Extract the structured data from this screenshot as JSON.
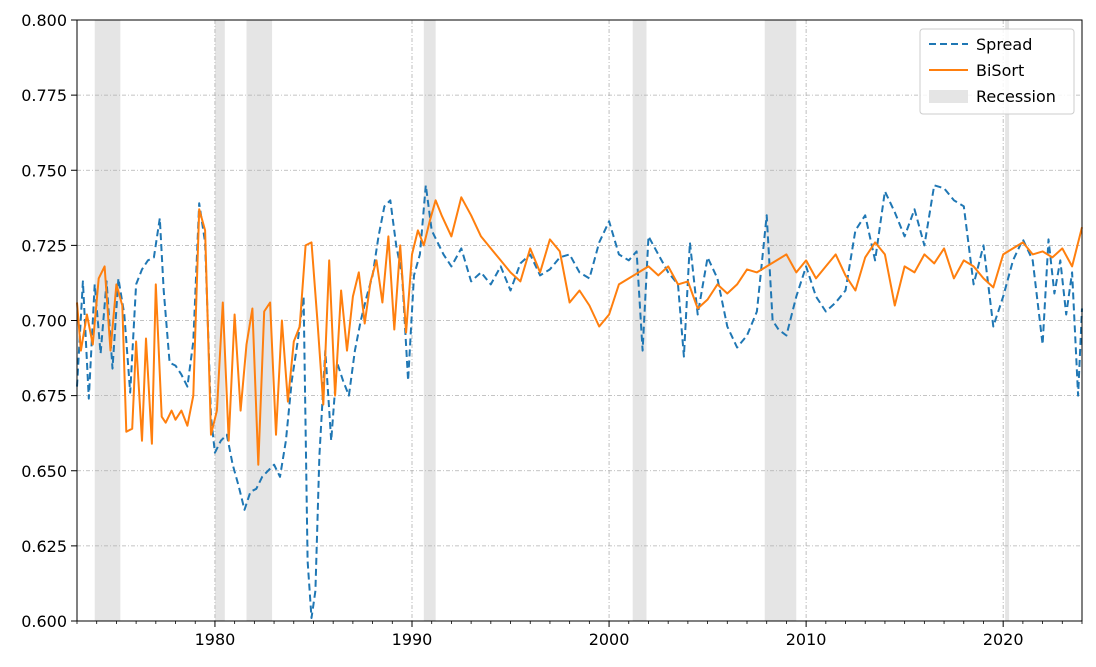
{
  "chart_data": {
    "type": "line",
    "title": "",
    "xlabel": "",
    "ylabel": "",
    "xlim": [
      1973.0,
      2024.0
    ],
    "ylim": [
      0.6,
      0.8
    ],
    "x_ticks": [
      1980,
      1990,
      2000,
      2010,
      2020
    ],
    "x_tick_labels": [
      "1980",
      "1990",
      "2000",
      "2010",
      "2020"
    ],
    "y_ticks": [
      0.6,
      0.625,
      0.65,
      0.675,
      0.7,
      0.725,
      0.75,
      0.775,
      0.8
    ],
    "y_tick_labels": [
      "0.600",
      "0.625",
      "0.650",
      "0.675",
      "0.700",
      "0.725",
      "0.750",
      "0.775",
      "0.800"
    ],
    "grid": true,
    "legend_position": "top-right",
    "legend": [
      "Spread",
      "BiSort",
      "Recession"
    ],
    "recessions": [
      [
        1973.9,
        1975.2
      ],
      [
        1980.0,
        1980.5
      ],
      [
        1981.6,
        1982.9
      ],
      [
        1990.6,
        1991.2
      ],
      [
        2001.2,
        2001.9
      ],
      [
        2007.9,
        2009.5
      ],
      [
        2020.1,
        2020.3
      ]
    ],
    "series": [
      {
        "name": "Spread",
        "style": "dashed",
        "color": "#1f77b4",
        "x": [
          1973.0,
          1973.3,
          1973.6,
          1973.9,
          1974.2,
          1974.5,
          1974.8,
          1975.1,
          1975.4,
          1975.7,
          1976.0,
          1976.3,
          1976.6,
          1976.9,
          1977.2,
          1977.4,
          1977.7,
          1978.0,
          1978.3,
          1978.6,
          1978.9,
          1979.2,
          1979.5,
          1979.8,
          1980.0,
          1980.3,
          1980.6,
          1980.9,
          1981.2,
          1981.5,
          1981.8,
          1982.1,
          1982.4,
          1982.7,
          1983.0,
          1983.3,
          1983.6,
          1983.9,
          1984.2,
          1984.5,
          1984.7,
          1984.9,
          1985.1,
          1985.3,
          1985.6,
          1985.9,
          1986.2,
          1986.5,
          1986.8,
          1987.1,
          1987.4,
          1987.7,
          1988.0,
          1988.3,
          1988.6,
          1988.9,
          1989.2,
          1989.5,
          1989.8,
          1990.1,
          1990.4,
          1990.7,
          1991.0,
          1991.3,
          1991.6,
          1992.0,
          1992.5,
          1993.0,
          1993.5,
          1994.0,
          1994.5,
          1995.0,
          1995.5,
          1996.0,
          1996.5,
          1997.0,
          1997.5,
          1998.0,
          1998.5,
          1999.0,
          1999.5,
          2000.0,
          2000.5,
          2001.0,
          2001.4,
          2001.7,
          2002.0,
          2002.5,
          2003.0,
          2003.5,
          2003.8,
          2004.1,
          2004.5,
          2005.0,
          2005.5,
          2006.0,
          2006.5,
          2007.0,
          2007.5,
          2008.0,
          2008.3,
          2008.6,
          2009.0,
          2009.5,
          2010.0,
          2010.5,
          2011.0,
          2011.5,
          2012.0,
          2012.5,
          2013.0,
          2013.5,
          2014.0,
          2014.5,
          2015.0,
          2015.5,
          2016.0,
          2016.5,
          2017.0,
          2017.5,
          2018.0,
          2018.5,
          2019.0,
          2019.5,
          2020.0,
          2020.5,
          2021.0,
          2021.5,
          2022.0,
          2022.3,
          2022.6,
          2022.9,
          2023.2,
          2023.5,
          2023.8,
          2024.0
        ],
        "values": [
          0.678,
          0.713,
          0.674,
          0.712,
          0.689,
          0.713,
          0.684,
          0.714,
          0.702,
          0.676,
          0.712,
          0.717,
          0.72,
          0.721,
          0.734,
          0.71,
          0.686,
          0.685,
          0.682,
          0.678,
          0.693,
          0.739,
          0.726,
          0.668,
          0.656,
          0.66,
          0.662,
          0.652,
          0.645,
          0.637,
          0.643,
          0.644,
          0.648,
          0.65,
          0.652,
          0.648,
          0.66,
          0.68,
          0.693,
          0.708,
          0.62,
          0.601,
          0.61,
          0.655,
          0.69,
          0.66,
          0.686,
          0.68,
          0.675,
          0.69,
          0.7,
          0.708,
          0.715,
          0.728,
          0.738,
          0.74,
          0.725,
          0.715,
          0.68,
          0.715,
          0.722,
          0.745,
          0.73,
          0.726,
          0.722,
          0.718,
          0.724,
          0.713,
          0.716,
          0.712,
          0.718,
          0.71,
          0.719,
          0.722,
          0.715,
          0.717,
          0.721,
          0.722,
          0.716,
          0.714,
          0.726,
          0.733,
          0.722,
          0.72,
          0.723,
          0.69,
          0.728,
          0.722,
          0.716,
          0.712,
          0.688,
          0.726,
          0.702,
          0.721,
          0.714,
          0.698,
          0.691,
          0.695,
          0.703,
          0.735,
          0.7,
          0.697,
          0.695,
          0.708,
          0.718,
          0.708,
          0.703,
          0.706,
          0.71,
          0.73,
          0.735,
          0.72,
          0.743,
          0.736,
          0.728,
          0.737,
          0.725,
          0.745,
          0.744,
          0.74,
          0.738,
          0.712,
          0.725,
          0.698,
          0.708,
          0.72,
          0.727,
          0.72,
          0.692,
          0.727,
          0.709,
          0.72,
          0.702,
          0.716,
          0.675,
          0.704
        ]
      },
      {
        "name": "BiSort",
        "style": "solid",
        "color": "#ff7f0e",
        "x": [
          1973.0,
          1973.2,
          1973.5,
          1973.8,
          1974.1,
          1974.4,
          1974.7,
          1975.0,
          1975.3,
          1975.5,
          1975.8,
          1976.0,
          1976.3,
          1976.5,
          1976.8,
          1977.0,
          1977.3,
          1977.5,
          1977.8,
          1978.0,
          1978.3,
          1978.6,
          1978.9,
          1979.2,
          1979.5,
          1979.8,
          1980.1,
          1980.4,
          1980.7,
          1981.0,
          1981.3,
          1981.6,
          1981.9,
          1982.2,
          1982.5,
          1982.8,
          1983.1,
          1983.4,
          1983.7,
          1984.0,
          1984.3,
          1984.6,
          1984.9,
          1985.2,
          1985.5,
          1985.8,
          1986.1,
          1986.4,
          1986.7,
          1987.0,
          1987.3,
          1987.6,
          1987.9,
          1988.2,
          1988.5,
          1988.8,
          1989.1,
          1989.4,
          1989.7,
          1990.0,
          1990.3,
          1990.6,
          1990.9,
          1991.2,
          1991.5,
          1992.0,
          1992.5,
          1993.0,
          1993.5,
          1994.0,
          1994.5,
          1995.0,
          1995.5,
          1996.0,
          1996.5,
          1997.0,
          1997.5,
          1998.0,
          1998.5,
          1999.0,
          1999.5,
          2000.0,
          2000.5,
          2001.0,
          2001.5,
          2002.0,
          2002.5,
          2003.0,
          2003.5,
          2004.0,
          2004.5,
          2005.0,
          2005.5,
          2006.0,
          2006.5,
          2007.0,
          2007.5,
          2008.0,
          2008.5,
          2009.0,
          2009.5,
          2010.0,
          2010.5,
          2011.0,
          2011.5,
          2012.0,
          2012.5,
          2013.0,
          2013.5,
          2014.0,
          2014.5,
          2015.0,
          2015.5,
          2016.0,
          2016.5,
          2017.0,
          2017.5,
          2018.0,
          2018.5,
          2019.0,
          2019.5,
          2020.0,
          2020.5,
          2021.0,
          2021.5,
          2022.0,
          2022.5,
          2023.0,
          2023.5,
          2024.0
        ],
        "values": [
          0.706,
          0.69,
          0.702,
          0.692,
          0.714,
          0.718,
          0.69,
          0.712,
          0.705,
          0.663,
          0.664,
          0.693,
          0.66,
          0.694,
          0.659,
          0.712,
          0.668,
          0.666,
          0.67,
          0.667,
          0.67,
          0.665,
          0.675,
          0.737,
          0.73,
          0.662,
          0.67,
          0.706,
          0.66,
          0.702,
          0.67,
          0.692,
          0.704,
          0.652,
          0.703,
          0.706,
          0.662,
          0.7,
          0.673,
          0.693,
          0.698,
          0.725,
          0.726,
          0.7,
          0.672,
          0.72,
          0.675,
          0.71,
          0.69,
          0.708,
          0.716,
          0.699,
          0.713,
          0.72,
          0.706,
          0.728,
          0.697,
          0.725,
          0.696,
          0.722,
          0.73,
          0.725,
          0.733,
          0.74,
          0.735,
          0.728,
          0.741,
          0.735,
          0.728,
          0.724,
          0.72,
          0.716,
          0.713,
          0.724,
          0.716,
          0.727,
          0.723,
          0.706,
          0.71,
          0.705,
          0.698,
          0.702,
          0.712,
          0.714,
          0.716,
          0.718,
          0.715,
          0.718,
          0.712,
          0.713,
          0.704,
          0.707,
          0.712,
          0.709,
          0.712,
          0.717,
          0.716,
          0.718,
          0.72,
          0.722,
          0.716,
          0.72,
          0.714,
          0.718,
          0.722,
          0.715,
          0.71,
          0.721,
          0.726,
          0.722,
          0.705,
          0.718,
          0.716,
          0.722,
          0.719,
          0.724,
          0.714,
          0.72,
          0.718,
          0.714,
          0.711,
          0.722,
          0.724,
          0.726,
          0.722,
          0.723,
          0.721,
          0.724,
          0.718,
          0.731
        ]
      }
    ]
  },
  "colors": {
    "spread": "#1f77b4",
    "bisort": "#ff7f0e",
    "recession": "#e5e5e5",
    "grid": "#b0b0b0"
  }
}
